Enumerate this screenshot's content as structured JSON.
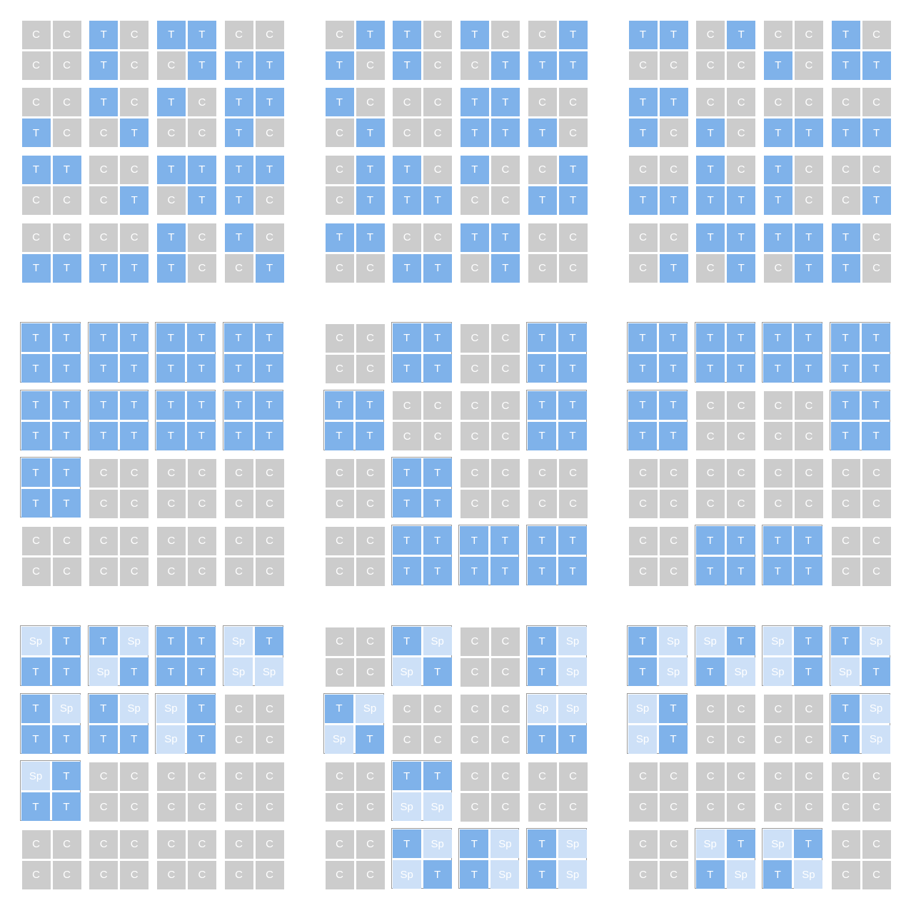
{
  "labels": {
    "C": "C",
    "T": "T",
    "Sp": "Sp"
  },
  "colors": {
    "C": "#cccccc",
    "T": "#7fb2ea",
    "Sp": "#cde0f7",
    "text": "#ffffff",
    "outline": "#9a9a9a"
  },
  "panels": [
    {
      "highlight": [],
      "grid": [
        [
          "C",
          "C",
          "T",
          "C",
          "T",
          "T",
          "C",
          "C"
        ],
        [
          "C",
          "C",
          "T",
          "C",
          "C",
          "T",
          "T",
          "T"
        ],
        [
          "C",
          "C",
          "T",
          "C",
          "T",
          "C",
          "T",
          "T"
        ],
        [
          "T",
          "C",
          "C",
          "T",
          "C",
          "C",
          "T",
          "C"
        ],
        [
          "T",
          "T",
          "C",
          "C",
          "T",
          "T",
          "T",
          "T"
        ],
        [
          "C",
          "C",
          "C",
          "T",
          "C",
          "T",
          "T",
          "C"
        ],
        [
          "C",
          "C",
          "C",
          "C",
          "T",
          "C",
          "T",
          "C"
        ],
        [
          "T",
          "T",
          "T",
          "T",
          "T",
          "C",
          "C",
          "T"
        ]
      ]
    },
    {
      "highlight": [],
      "grid": [
        [
          "C",
          "T",
          "T",
          "C",
          "T",
          "C",
          "C",
          "T"
        ],
        [
          "T",
          "C",
          "T",
          "C",
          "C",
          "T",
          "T",
          "T"
        ],
        [
          "T",
          "C",
          "C",
          "C",
          "T",
          "T",
          "C",
          "C"
        ],
        [
          "C",
          "T",
          "C",
          "C",
          "T",
          "T",
          "T",
          "C"
        ],
        [
          "C",
          "T",
          "T",
          "C",
          "T",
          "C",
          "C",
          "T"
        ],
        [
          "C",
          "T",
          "T",
          "T",
          "C",
          "C",
          "T",
          "T"
        ],
        [
          "T",
          "T",
          "C",
          "C",
          "T",
          "T",
          "C",
          "C"
        ],
        [
          "C",
          "C",
          "T",
          "T",
          "C",
          "T",
          "C",
          "C"
        ]
      ]
    },
    {
      "highlight": [],
      "grid": [
        [
          "T",
          "T",
          "C",
          "T",
          "C",
          "C",
          "T",
          "C"
        ],
        [
          "C",
          "C",
          "C",
          "C",
          "T",
          "C",
          "T",
          "T"
        ],
        [
          "T",
          "T",
          "C",
          "C",
          "C",
          "C",
          "C",
          "C"
        ],
        [
          "T",
          "C",
          "T",
          "C",
          "T",
          "T",
          "T",
          "T"
        ],
        [
          "C",
          "C",
          "T",
          "C",
          "T",
          "C",
          "C",
          "C"
        ],
        [
          "T",
          "T",
          "T",
          "T",
          "T",
          "C",
          "C",
          "T"
        ],
        [
          "C",
          "C",
          "T",
          "T",
          "T",
          "T",
          "T",
          "C"
        ],
        [
          "C",
          "T",
          "C",
          "T",
          "C",
          "T",
          "T",
          "C"
        ]
      ]
    },
    {
      "highlight": [
        [
          0,
          0
        ],
        [
          0,
          1
        ],
        [
          0,
          2
        ],
        [
          0,
          3
        ],
        [
          1,
          0
        ],
        [
          1,
          1
        ],
        [
          1,
          2
        ],
        [
          1,
          3
        ],
        [
          2,
          0
        ]
      ],
      "grid": [
        [
          "T",
          "T",
          "T",
          "T",
          "T",
          "T",
          "T",
          "T"
        ],
        [
          "T",
          "T",
          "T",
          "T",
          "T",
          "T",
          "T",
          "T"
        ],
        [
          "T",
          "T",
          "T",
          "T",
          "T",
          "T",
          "T",
          "T"
        ],
        [
          "T",
          "T",
          "T",
          "T",
          "T",
          "T",
          "T",
          "T"
        ],
        [
          "T",
          "T",
          "C",
          "C",
          "C",
          "C",
          "C",
          "C"
        ],
        [
          "T",
          "T",
          "C",
          "C",
          "C",
          "C",
          "C",
          "C"
        ],
        [
          "C",
          "C",
          "C",
          "C",
          "C",
          "C",
          "C",
          "C"
        ],
        [
          "C",
          "C",
          "C",
          "C",
          "C",
          "C",
          "C",
          "C"
        ]
      ]
    },
    {
      "highlight": [
        [
          0,
          1
        ],
        [
          0,
          3
        ],
        [
          1,
          0
        ],
        [
          1,
          3
        ],
        [
          2,
          1
        ],
        [
          3,
          1
        ],
        [
          3,
          2
        ],
        [
          3,
          3
        ]
      ],
      "grid": [
        [
          "C",
          "C",
          "T",
          "T",
          "C",
          "C",
          "T",
          "T"
        ],
        [
          "C",
          "C",
          "T",
          "T",
          "C",
          "C",
          "T",
          "T"
        ],
        [
          "T",
          "T",
          "C",
          "C",
          "C",
          "C",
          "T",
          "T"
        ],
        [
          "T",
          "T",
          "C",
          "C",
          "C",
          "C",
          "T",
          "T"
        ],
        [
          "C",
          "C",
          "T",
          "T",
          "C",
          "C",
          "C",
          "C"
        ],
        [
          "C",
          "C",
          "T",
          "T",
          "C",
          "C",
          "C",
          "C"
        ],
        [
          "C",
          "C",
          "T",
          "T",
          "T",
          "T",
          "T",
          "T"
        ],
        [
          "C",
          "C",
          "T",
          "T",
          "T",
          "T",
          "T",
          "T"
        ]
      ]
    },
    {
      "highlight": [
        [
          0,
          0
        ],
        [
          0,
          1
        ],
        [
          0,
          2
        ],
        [
          0,
          3
        ],
        [
          1,
          0
        ],
        [
          1,
          3
        ],
        [
          3,
          1
        ],
        [
          3,
          2
        ]
      ],
      "grid": [
        [
          "T",
          "T",
          "T",
          "T",
          "T",
          "T",
          "T",
          "T"
        ],
        [
          "T",
          "T",
          "T",
          "T",
          "T",
          "T",
          "T",
          "T"
        ],
        [
          "T",
          "T",
          "C",
          "C",
          "C",
          "C",
          "T",
          "T"
        ],
        [
          "T",
          "T",
          "C",
          "C",
          "C",
          "C",
          "T",
          "T"
        ],
        [
          "C",
          "C",
          "C",
          "C",
          "C",
          "C",
          "C",
          "C"
        ],
        [
          "C",
          "C",
          "C",
          "C",
          "C",
          "C",
          "C",
          "C"
        ],
        [
          "C",
          "C",
          "T",
          "T",
          "T",
          "T",
          "C",
          "C"
        ],
        [
          "C",
          "C",
          "T",
          "T",
          "T",
          "T",
          "C",
          "C"
        ]
      ]
    },
    {
      "highlight": [
        [
          0,
          0
        ],
        [
          0,
          1
        ],
        [
          0,
          2
        ],
        [
          0,
          3
        ],
        [
          1,
          0
        ],
        [
          1,
          1
        ],
        [
          1,
          2
        ],
        [
          2,
          0
        ]
      ],
      "grid": [
        [
          "Sp",
          "T",
          "T",
          "Sp",
          "T",
          "T",
          "Sp",
          "T"
        ],
        [
          "T",
          "T",
          "Sp",
          "T",
          "T",
          "T",
          "Sp",
          "Sp"
        ],
        [
          "T",
          "Sp",
          "T",
          "Sp",
          "Sp",
          "T",
          "C",
          "C"
        ],
        [
          "T",
          "T",
          "T",
          "T",
          "Sp",
          "T",
          "C",
          "C"
        ],
        [
          "Sp",
          "T",
          "C",
          "C",
          "C",
          "C",
          "C",
          "C"
        ],
        [
          "T",
          "T",
          "C",
          "C",
          "C",
          "C",
          "C",
          "C"
        ],
        [
          "C",
          "C",
          "C",
          "C",
          "C",
          "C",
          "C",
          "C"
        ],
        [
          "C",
          "C",
          "C",
          "C",
          "C",
          "C",
          "C",
          "C"
        ]
      ]
    },
    {
      "highlight": [
        [
          0,
          1
        ],
        [
          0,
          3
        ],
        [
          1,
          0
        ],
        [
          1,
          3
        ],
        [
          2,
          1
        ],
        [
          3,
          1
        ],
        [
          3,
          2
        ],
        [
          3,
          3
        ]
      ],
      "grid": [
        [
          "C",
          "C",
          "T",
          "Sp",
          "C",
          "C",
          "T",
          "Sp"
        ],
        [
          "C",
          "C",
          "Sp",
          "T",
          "C",
          "C",
          "T",
          "Sp"
        ],
        [
          "T",
          "Sp",
          "C",
          "C",
          "C",
          "C",
          "Sp",
          "Sp"
        ],
        [
          "Sp",
          "T",
          "C",
          "C",
          "C",
          "C",
          "T",
          "T"
        ],
        [
          "C",
          "C",
          "T",
          "T",
          "C",
          "C",
          "C",
          "C"
        ],
        [
          "C",
          "C",
          "Sp",
          "Sp",
          "C",
          "C",
          "C",
          "C"
        ],
        [
          "C",
          "C",
          "T",
          "Sp",
          "T",
          "Sp",
          "T",
          "Sp"
        ],
        [
          "C",
          "C",
          "Sp",
          "T",
          "T",
          "Sp",
          "T",
          "Sp"
        ]
      ]
    },
    {
      "highlight": [
        [
          0,
          0
        ],
        [
          0,
          1
        ],
        [
          0,
          2
        ],
        [
          0,
          3
        ],
        [
          1,
          0
        ],
        [
          1,
          3
        ],
        [
          3,
          1
        ],
        [
          3,
          2
        ]
      ],
      "grid": [
        [
          "T",
          "Sp",
          "Sp",
          "T",
          "Sp",
          "T",
          "T",
          "Sp"
        ],
        [
          "T",
          "Sp",
          "T",
          "Sp",
          "Sp",
          "T",
          "Sp",
          "T"
        ],
        [
          "Sp",
          "T",
          "C",
          "C",
          "C",
          "C",
          "T",
          "Sp"
        ],
        [
          "Sp",
          "T",
          "C",
          "C",
          "C",
          "C",
          "T",
          "Sp"
        ],
        [
          "C",
          "C",
          "C",
          "C",
          "C",
          "C",
          "C",
          "C"
        ],
        [
          "C",
          "C",
          "C",
          "C",
          "C",
          "C",
          "C",
          "C"
        ],
        [
          "C",
          "C",
          "Sp",
          "T",
          "Sp",
          "T",
          "C",
          "C"
        ],
        [
          "C",
          "C",
          "T",
          "Sp",
          "T",
          "Sp",
          "C",
          "C"
        ]
      ]
    }
  ]
}
